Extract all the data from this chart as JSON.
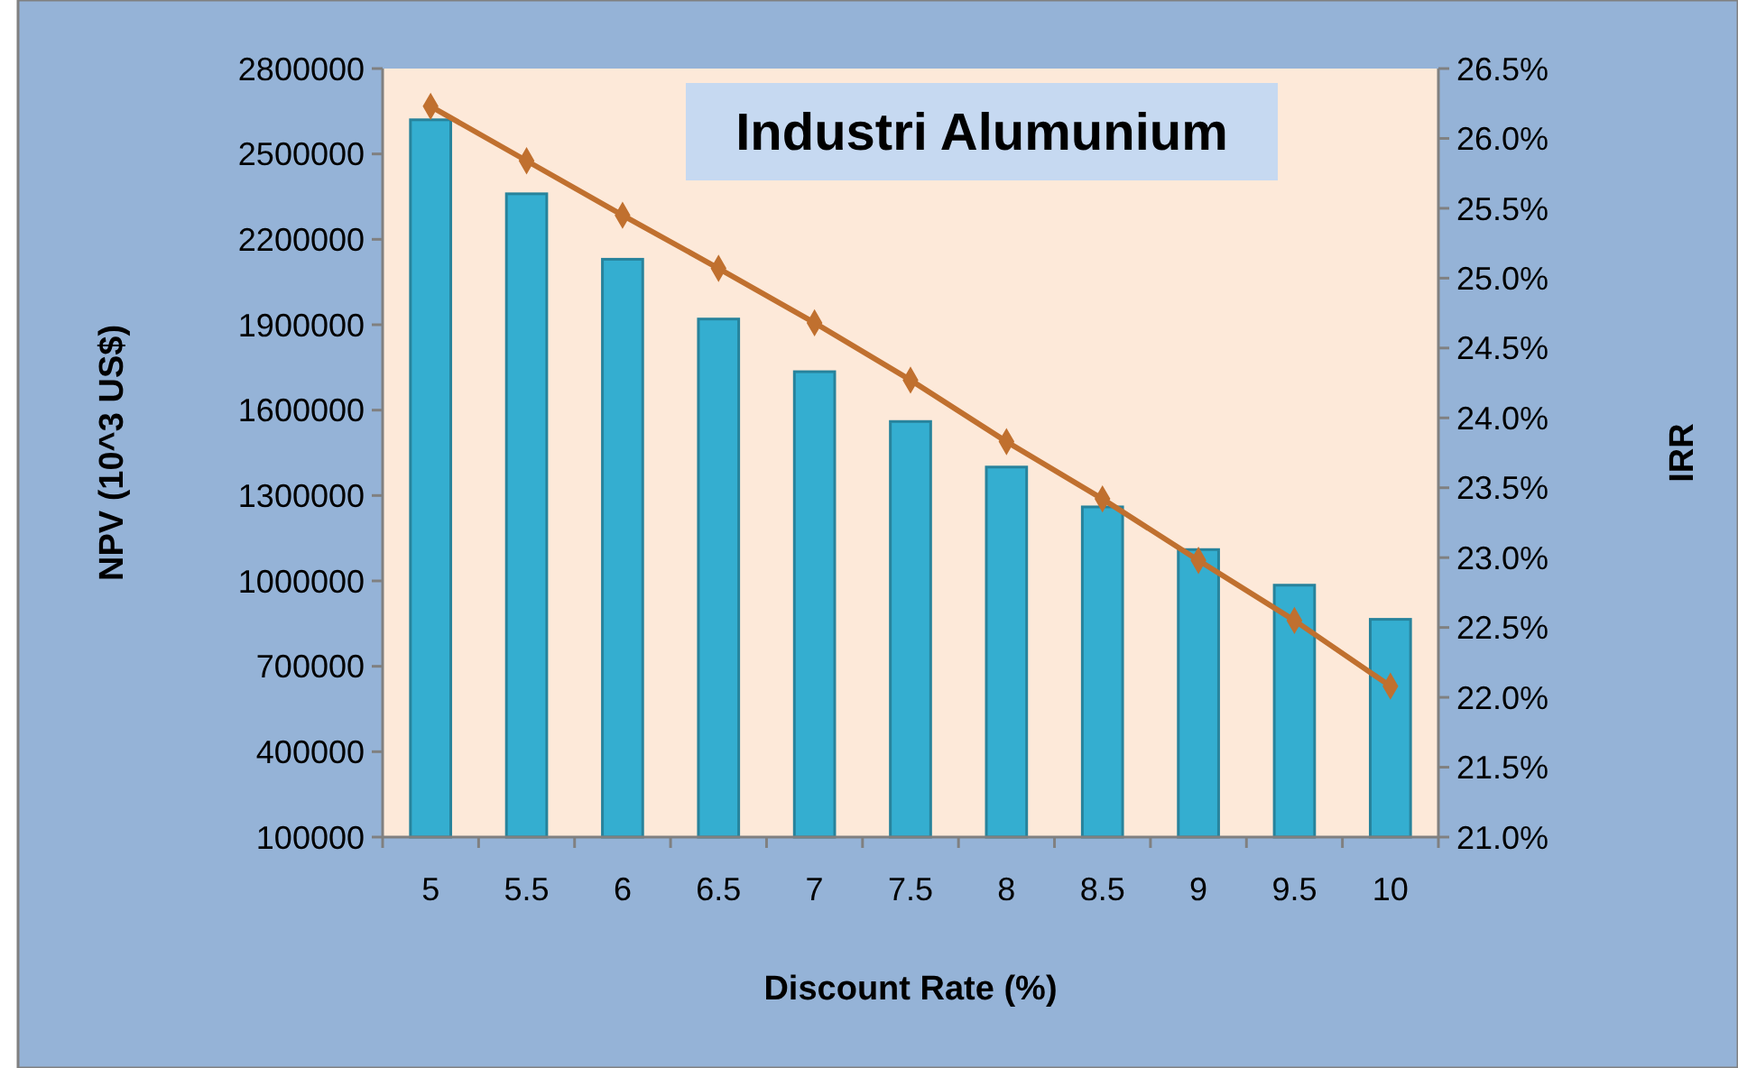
{
  "chart_data": {
    "type": "bar",
    "title": "Industri Alumunium",
    "xlabel": "Discount Rate (%)",
    "ylabel": "NPV (10^3 US$)",
    "y2label": "IRR",
    "categories": [
      "5",
      "5.5",
      "6",
      "6.5",
      "7",
      "7.5",
      "8",
      "8.5",
      "9",
      "9.5",
      "10"
    ],
    "series": [
      {
        "color": "#34aed0",
        "values": [
          2620000,
          2360000,
          2130000,
          1920000,
          1735000,
          1560000,
          1400000,
          1260000,
          1110000,
          985000,
          865000
        ]
      },
      {
        "type": "line",
        "axis": "y2",
        "color": "#c0702f",
        "marker": "diamond",
        "values": [
          26.23,
          25.84,
          25.45,
          25.07,
          24.68,
          24.27,
          23.83,
          23.42,
          22.98,
          22.55,
          22.08
        ]
      }
    ],
    "ylim": [
      100000,
      2800000
    ],
    "yticks": [
      100000,
      400000,
      700000,
      1000000,
      1300000,
      1600000,
      1900000,
      2200000,
      2500000,
      2800000
    ],
    "y2lim": [
      21.0,
      26.5
    ],
    "y2ticks": [
      {
        "value": 21.0,
        "label": "21.0%"
      },
      {
        "value": 21.5,
        "label": "21.5%"
      },
      {
        "value": 22.0,
        "label": "22.0%"
      },
      {
        "value": 22.5,
        "label": "22.5%"
      },
      {
        "value": 23.0,
        "label": "23.0%"
      },
      {
        "value": 23.5,
        "label": "23.5%"
      },
      {
        "value": 24.0,
        "label": "24.0%"
      },
      {
        "value": 24.5,
        "label": "24.5%"
      },
      {
        "value": 25.0,
        "label": "25.0%"
      },
      {
        "value": 25.5,
        "label": "25.5%"
      },
      {
        "value": 26.0,
        "label": "26.0%"
      },
      {
        "value": 26.5,
        "label": "26.5%"
      }
    ]
  }
}
